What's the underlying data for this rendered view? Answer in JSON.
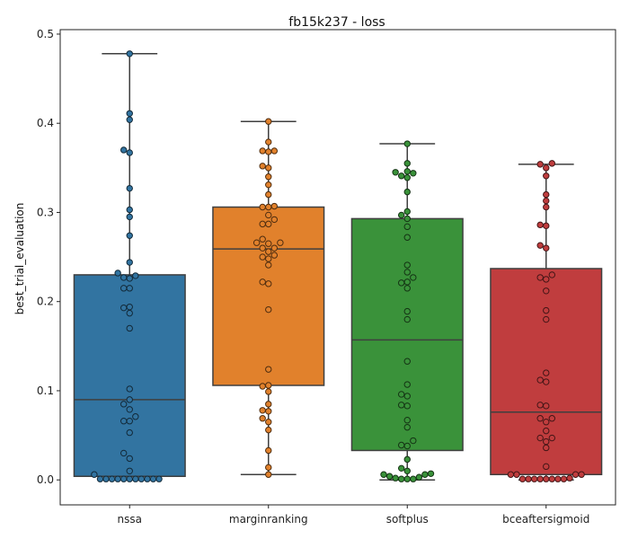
{
  "chart_data": {
    "type": "box",
    "title": "fb15k237 - loss",
    "xlabel": "",
    "ylabel": "best_trial_evaluation",
    "ylim": [
      -0.028,
      0.505
    ],
    "yticks": [
      0.0,
      0.1,
      0.2,
      0.3,
      0.4,
      0.5
    ],
    "ytick_labels": [
      "0.0",
      "0.1",
      "0.2",
      "0.3",
      "0.4",
      "0.5"
    ],
    "grid": false,
    "categories": [
      "nssa",
      "marginranking",
      "softplus",
      "bceaftersigmoid"
    ],
    "colors": [
      "#3274a1",
      "#e1812c",
      "#3a923a",
      "#c03d3e"
    ],
    "boxes": [
      {
        "whislo": 0.0,
        "q1": 0.004,
        "med": 0.09,
        "q3": 0.23,
        "whishi": 0.478
      },
      {
        "whislo": 0.006,
        "q1": 0.106,
        "med": 0.259,
        "q3": 0.306,
        "whishi": 0.402
      },
      {
        "whislo": 0.0,
        "q1": 0.033,
        "med": 0.157,
        "q3": 0.293,
        "whishi": 0.377
      },
      {
        "whislo": 0.0,
        "q1": 0.006,
        "med": 0.076,
        "q3": 0.237,
        "whishi": 0.354
      }
    ],
    "points": [
      [
        0.478,
        0.411,
        0.404,
        0.37,
        0.367,
        0.327,
        0.303,
        0.295,
        0.274,
        0.244,
        0.232,
        0.229,
        0.227,
        0.226,
        0.215,
        0.215,
        0.194,
        0.193,
        0.187,
        0.17,
        0.102,
        0.09,
        0.085,
        0.079,
        0.071,
        0.066,
        0.066,
        0.053,
        0.03,
        0.024,
        0.01,
        0.006,
        0.001,
        0.001,
        0.001,
        0.001,
        0.001,
        0.001,
        0.001,
        0.001,
        0.001,
        0.001,
        0.001
      ],
      [
        0.402,
        0.379,
        0.369,
        0.368,
        0.369,
        0.352,
        0.35,
        0.34,
        0.331,
        0.32,
        0.306,
        0.306,
        0.307,
        0.297,
        0.292,
        0.287,
        0.287,
        0.27,
        0.266,
        0.265,
        0.266,
        0.26,
        0.26,
        0.256,
        0.252,
        0.25,
        0.248,
        0.241,
        0.222,
        0.22,
        0.191,
        0.124,
        0.105,
        0.106,
        0.099,
        0.085,
        0.077,
        0.078,
        0.069,
        0.065,
        0.056,
        0.033,
        0.014,
        0.006
      ],
      [
        0.377,
        0.355,
        0.346,
        0.345,
        0.344,
        0.341,
        0.339,
        0.323,
        0.301,
        0.297,
        0.293,
        0.284,
        0.272,
        0.241,
        0.233,
        0.227,
        0.222,
        0.221,
        0.215,
        0.189,
        0.18,
        0.133,
        0.107,
        0.096,
        0.094,
        0.084,
        0.083,
        0.067,
        0.059,
        0.044,
        0.039,
        0.038,
        0.023,
        0.013,
        0.01,
        0.007,
        0.006,
        0.006,
        0.004,
        0.003,
        0.002,
        0.001,
        0.001,
        0.001
      ],
      [
        0.355,
        0.354,
        0.35,
        0.341,
        0.32,
        0.313,
        0.306,
        0.286,
        0.285,
        0.263,
        0.26,
        0.23,
        0.227,
        0.225,
        0.212,
        0.19,
        0.18,
        0.12,
        0.112,
        0.11,
        0.084,
        0.083,
        0.069,
        0.069,
        0.065,
        0.055,
        0.047,
        0.047,
        0.043,
        0.036,
        0.015,
        0.006,
        0.006,
        0.006,
        0.006,
        0.002,
        0.001,
        0.001,
        0.001,
        0.001,
        0.001,
        0.001,
        0.001,
        0.001
      ]
    ]
  }
}
